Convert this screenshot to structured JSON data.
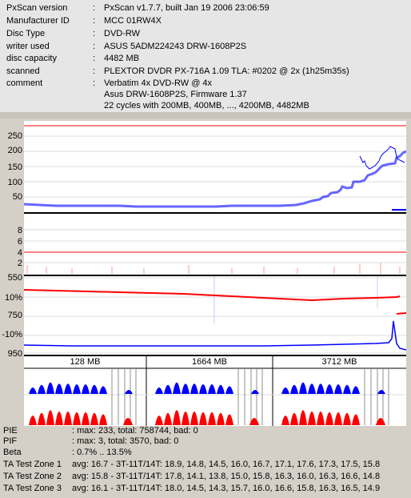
{
  "info": {
    "rows": [
      {
        "label": "PxScan version",
        "value": "PxScan v1.7.7, built Jan 19 2006 23:06:59"
      },
      {
        "label": "Manufacturer ID",
        "value": "MCC 01RW4X"
      },
      {
        "label": "Disc Type",
        "value": "DVD-RW"
      },
      {
        "label": "writer used",
        "value": "ASUS 5ADM224243 DRW-1608P2S"
      },
      {
        "label": "disc capacity",
        "value": "4482 MB"
      },
      {
        "label": "scanned",
        "value": "PLEXTOR DVDR PX-716A 1.09 TLA: #0202 @ 2x (1h25m35s)"
      },
      {
        "label": "comment",
        "value": "Verbatim 4x DVD-RW @ 4x"
      }
    ],
    "comment_lines": [
      "Asus DRW-1608P2S, Firmware 1.37",
      "22 cycles with 200MB, 400MB, ..., 4200MB, 4482MB"
    ],
    "colon": ":"
  },
  "pie_axis": [
    "250",
    "200",
    "150",
    "100",
    "50"
  ],
  "pif_axis": [
    "8",
    "6",
    "4",
    "2"
  ],
  "jitter_axis": [
    {
      "label": "550",
      "color": "#0000ff"
    },
    {
      "label": "10%",
      "color": "#ff0000"
    },
    {
      "label": "750",
      "color": "#0000ff"
    },
    {
      "label": "-10%",
      "color": "#ff0000"
    },
    {
      "label": "950",
      "color": "#0000ff"
    }
  ],
  "ta_zones": [
    "128 MB",
    "1664 MB",
    "3712 MB"
  ],
  "colors": {
    "pie": "#0000ff",
    "pif": "#ff0000",
    "beta": "#ff0000",
    "jitter": "#0000ff",
    "limit": "#ff0000"
  },
  "stats": {
    "pie_label": "PIE",
    "pie_value": ": max: 233, total: 758744, bad: 0",
    "pif_label": "PIF",
    "pif_value": ": max: 3, total: 3570, bad: 0",
    "beta_label": "Beta",
    "beta_value": ": 0.7% .. 13.5%",
    "zones": [
      {
        "label": "TA Test Zone 1",
        "value": "avg: 16.7 - 3T-11T/14T: 18.9, 14.8, 14.5, 16.0, 16.7, 17.1, 17.6, 17.3, 17.5, 15.8"
      },
      {
        "label": "TA Test Zone 2",
        "value": "avg: 15.8 - 3T-11T/14T: 17.8, 14.1, 13.8, 15.0, 15.8, 16.3, 16.0, 16.3, 16.6, 14.8"
      },
      {
        "label": "TA Test Zone 3",
        "value": "avg: 16.1 - 3T-11T/14T: 18.0, 14.5, 14.3, 15.7, 16.0, 16.6, 15.8, 16.3, 16.5, 14.9"
      }
    ]
  }
}
